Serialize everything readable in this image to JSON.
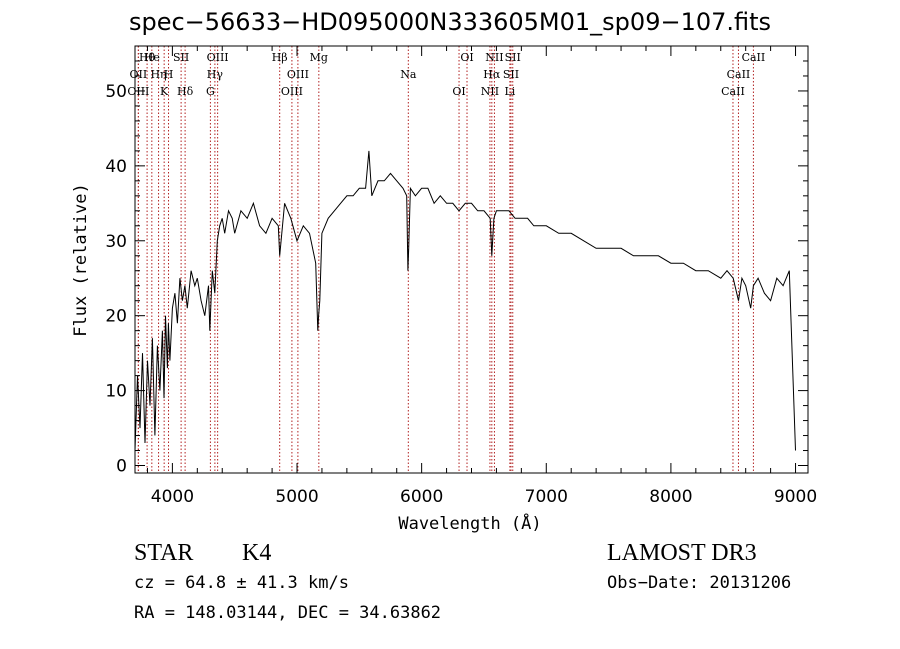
{
  "title": "spec−56633−HD095000N333605M01_sp09−107.fits",
  "info": {
    "class_label": "STAR",
    "subclass": "K4",
    "survey": "LAMOST DR3",
    "cz_text": "cz = 64.8 ± 41.3 km/s",
    "obs_date_text": "Obs−Date: 20131206",
    "radec_text": "RA = 148.03144, DEC =  34.63862"
  },
  "colors": {
    "spectrum": "#000000",
    "line_marker": "#b22222",
    "axes": "#000000"
  },
  "chart_data": {
    "type": "line",
    "title": "spec−56633−HD095000N333605M01_sp09−107.fits",
    "xlabel": "Wavelength (Å)",
    "ylabel": "Flux (relative)",
    "xlim": [
      3700,
      9100
    ],
    "ylim": [
      -1,
      56
    ],
    "xticks_major": [
      4000,
      5000,
      6000,
      7000,
      8000,
      9000
    ],
    "xtick_labels": [
      "4000",
      "5000",
      "6000",
      "7000",
      "8000",
      "9000"
    ],
    "xticks_minor_step": 200,
    "yticks_major": [
      0,
      10,
      20,
      30,
      40,
      50
    ],
    "ytick_labels": [
      "0",
      "10",
      "20",
      "30",
      "40",
      "50"
    ],
    "yticks_minor_step": 2,
    "series": [
      {
        "name": "flux",
        "x": [
          3700,
          3720,
          3740,
          3760,
          3780,
          3800,
          3820,
          3840,
          3860,
          3880,
          3900,
          3920,
          3933,
          3945,
          3960,
          3968,
          3980,
          4000,
          4020,
          4040,
          4060,
          4080,
          4100,
          4120,
          4150,
          4180,
          4200,
          4230,
          4260,
          4290,
          4300,
          4320,
          4340,
          4360,
          4380,
          4400,
          4420,
          4450,
          4480,
          4500,
          4550,
          4600,
          4650,
          4700,
          4750,
          4800,
          4850,
          4861,
          4900,
          4950,
          5000,
          5050,
          5100,
          5150,
          5167,
          5173,
          5183,
          5200,
          5250,
          5300,
          5350,
          5400,
          5450,
          5500,
          5550,
          5577,
          5600,
          5650,
          5700,
          5750,
          5800,
          5850,
          5880,
          5890,
          5896,
          5910,
          5950,
          6000,
          6050,
          6100,
          6150,
          6200,
          6250,
          6300,
          6350,
          6400,
          6450,
          6500,
          6550,
          6563,
          6580,
          6600,
          6650,
          6700,
          6750,
          6800,
          6850,
          6900,
          6950,
          7000,
          7100,
          7200,
          7300,
          7400,
          7500,
          7600,
          7700,
          7800,
          7900,
          8000,
          8100,
          8200,
          8300,
          8400,
          8450,
          8500,
          8542,
          8570,
          8600,
          8640,
          8662,
          8700,
          8750,
          8800,
          8850,
          8900,
          8950,
          9000
        ],
        "y": [
          2,
          12,
          5,
          15,
          3,
          14,
          8,
          17,
          4,
          16,
          10,
          18,
          9,
          20,
          13,
          19,
          14,
          21,
          23,
          19,
          25,
          22,
          24,
          21,
          26,
          24,
          25,
          22,
          20,
          24,
          18,
          26,
          23,
          30,
          32,
          33,
          31,
          34,
          33,
          31,
          34,
          33,
          35,
          32,
          31,
          33,
          32,
          28,
          35,
          33,
          30,
          32,
          31,
          27,
          18,
          20,
          22,
          31,
          33,
          34,
          35,
          36,
          36,
          37,
          37,
          42,
          36,
          38,
          38,
          39,
          38,
          37,
          36,
          26,
          29,
          37,
          36,
          37,
          37,
          35,
          36,
          35,
          35,
          34,
          35,
          35,
          34,
          34,
          33,
          28,
          33,
          34,
          34,
          34,
          33,
          33,
          33,
          32,
          32,
          32,
          31,
          31,
          30,
          29,
          29,
          29,
          28,
          28,
          28,
          27,
          27,
          26,
          26,
          25,
          26,
          25,
          22,
          25,
          24,
          21,
          24,
          25,
          23,
          22,
          25,
          24,
          26,
          2
        ]
      }
    ],
    "spectral_lines": [
      {
        "label": "Hθ",
        "wavelength": 3797
      },
      {
        "label": "OII",
        "wavelength": 3727
      },
      {
        "label": "OIII",
        "wavelength": 3727
      },
      {
        "label": "He",
        "wavelength": 3835
      },
      {
        "label": "Hη",
        "wavelength": 3889
      },
      {
        "label": "K",
        "wavelength": 3934
      },
      {
        "label": "SII",
        "wavelength": 4070
      },
      {
        "label": "H",
        "wavelength": 3969
      },
      {
        "label": "Hδ",
        "wavelength": 4102
      },
      {
        "label": "OIII",
        "wavelength": 4363
      },
      {
        "label": "Hγ",
        "wavelength": 4341
      },
      {
        "label": "G",
        "wavelength": 4305
      },
      {
        "label": "Hβ",
        "wavelength": 4861
      },
      {
        "label": "OIII",
        "wavelength": 5007
      },
      {
        "label": "OIII",
        "wavelength": 4959
      },
      {
        "label": "Mg",
        "wavelength": 5175
      },
      {
        "label": "Na",
        "wavelength": 5893
      },
      {
        "label": "OI",
        "wavelength": 6300
      },
      {
        "label": "OI",
        "wavelength": 6364
      },
      {
        "label": "Hα",
        "wavelength": 6563
      },
      {
        "label": "NII",
        "wavelength": 6548
      },
      {
        "label": "NII",
        "wavelength": 6584
      },
      {
        "label": "SII",
        "wavelength": 6717
      },
      {
        "label": "Li",
        "wavelength": 6708
      },
      {
        "label": "SII",
        "wavelength": 6731
      },
      {
        "label": "CaII",
        "wavelength": 8542
      },
      {
        "label": "CaII",
        "wavelength": 8498
      },
      {
        "label": "CaII",
        "wavelength": 8662
      }
    ]
  }
}
